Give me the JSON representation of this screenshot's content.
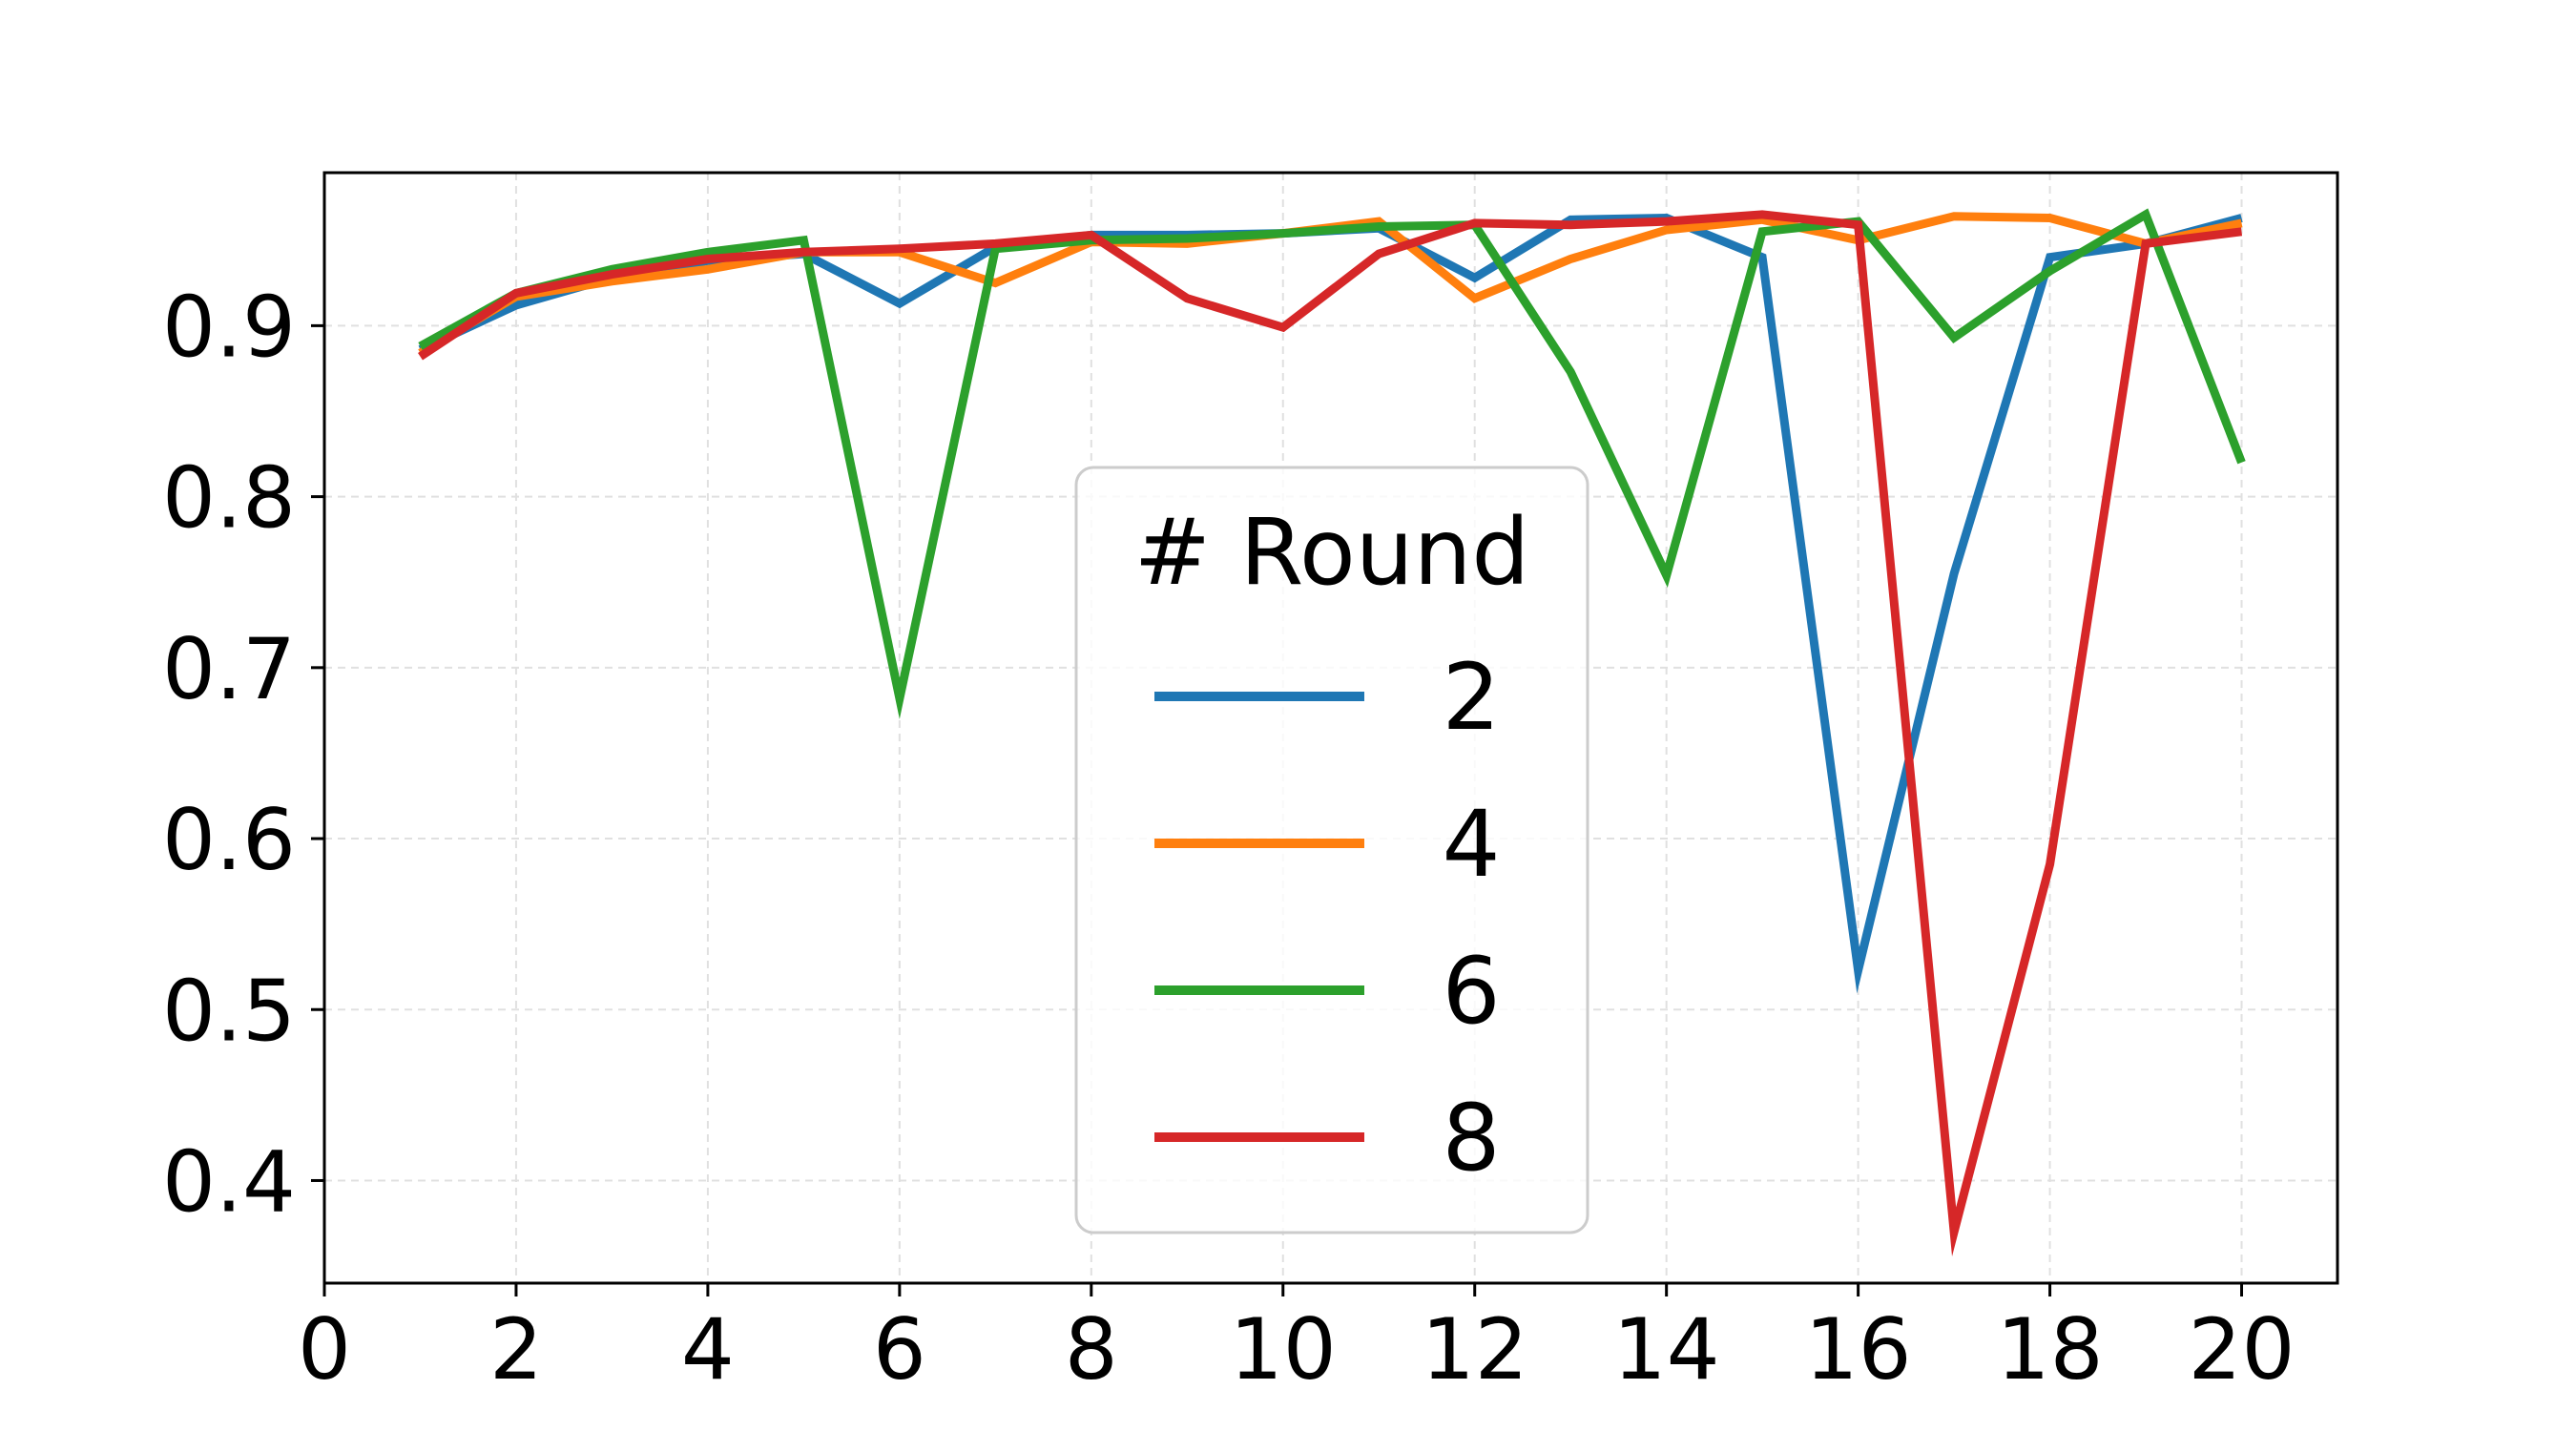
{
  "chart_data": {
    "type": "line",
    "title": "",
    "xlabel": "",
    "ylabel": "",
    "xlim": [
      0,
      21
    ],
    "ylim": [
      0.34,
      0.9895
    ],
    "xticks": [
      0,
      2,
      4,
      6,
      8,
      10,
      12,
      14,
      16,
      18,
      20
    ],
    "yticks": [
      0.4,
      0.5,
      0.6,
      0.7,
      0.8,
      0.9
    ],
    "ytick_labels": [
      "0.4",
      "0.5",
      "0.6",
      "0.7",
      "0.8",
      "0.9"
    ],
    "grid": true,
    "legend": {
      "title": "# Round",
      "placement": "center"
    },
    "x": [
      1,
      2,
      3,
      4,
      5,
      6,
      7,
      8,
      9,
      10,
      11,
      12,
      13,
      14,
      15,
      16,
      17,
      18,
      19,
      20
    ],
    "series": [
      {
        "name": "2",
        "color": "#1f77b4",
        "values": [
          0.886,
          0.912,
          0.928,
          0.938,
          0.942,
          0.913,
          0.946,
          0.953,
          0.953,
          0.954,
          0.957,
          0.928,
          0.962,
          0.963,
          0.94,
          0.523,
          0.755,
          0.94,
          0.948,
          0.963
        ]
      },
      {
        "name": "4",
        "color": "#ff7f0e",
        "values": [
          0.884,
          0.917,
          0.926,
          0.933,
          0.943,
          0.943,
          0.925,
          0.949,
          0.948,
          0.954,
          0.961,
          0.916,
          0.939,
          0.956,
          0.962,
          0.95,
          0.964,
          0.963,
          0.948,
          0.96
        ]
      },
      {
        "name": "6",
        "color": "#2ca02c",
        "values": [
          0.888,
          0.919,
          0.933,
          0.943,
          0.95,
          0.682,
          0.945,
          0.95,
          0.951,
          0.954,
          0.958,
          0.959,
          0.873,
          0.754,
          0.955,
          0.961,
          0.893,
          0.932,
          0.965,
          0.82
        ]
      },
      {
        "name": "8",
        "color": "#d62728",
        "values": [
          0.882,
          0.919,
          0.93,
          0.939,
          0.943,
          0.945,
          0.948,
          0.953,
          0.916,
          0.899,
          0.942,
          0.96,
          0.959,
          0.961,
          0.965,
          0.959,
          0.37,
          0.585,
          0.948,
          0.955
        ]
      }
    ]
  }
}
